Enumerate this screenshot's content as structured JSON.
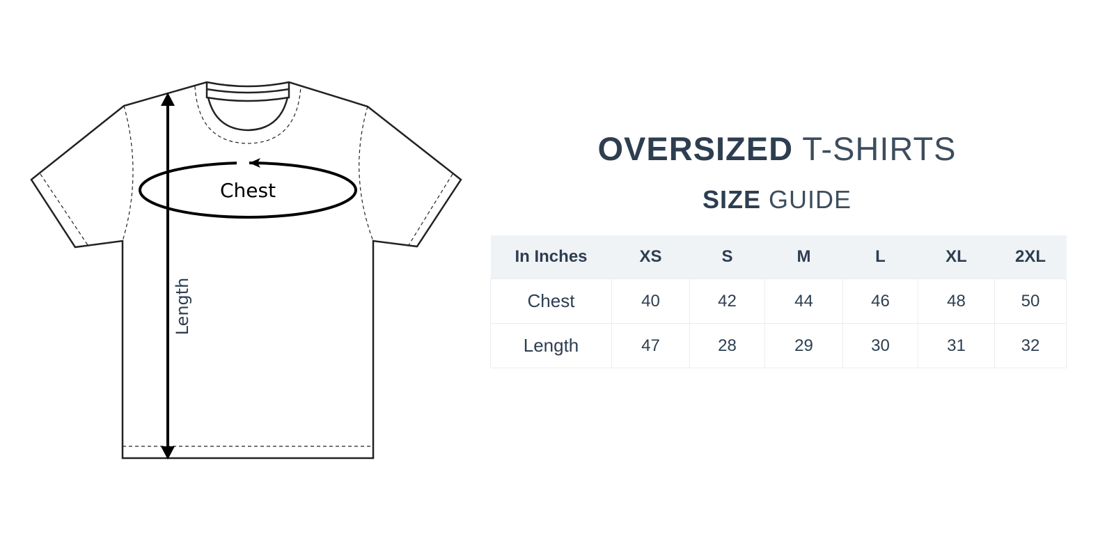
{
  "diagram": {
    "chest_label": "Chest",
    "length_label": "Length"
  },
  "heading": {
    "title_bold": "OVERSIZED",
    "title_light": "T-SHIRTS",
    "subtitle_bold": "SIZE",
    "subtitle_light": "GUIDE"
  },
  "colors": {
    "text": "#2d3e50",
    "header_bg": "#f0f3f6"
  },
  "table": {
    "headers": [
      "In Inches",
      "XS",
      "S",
      "M",
      "L",
      "XL",
      "2XL"
    ],
    "rows": [
      {
        "label": "Chest",
        "values": [
          "40",
          "42",
          "44",
          "46",
          "48",
          "50"
        ]
      },
      {
        "label": "Length",
        "values": [
          "47",
          "28",
          "29",
          "30",
          "31",
          "32"
        ]
      }
    ]
  }
}
